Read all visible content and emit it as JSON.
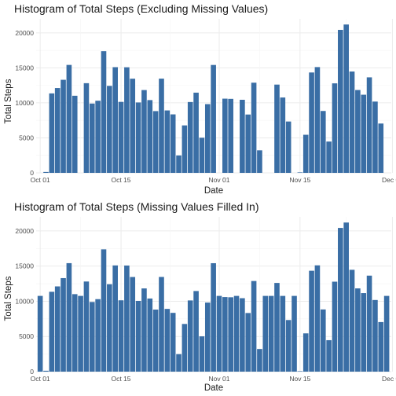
{
  "chart_data": [
    {
      "type": "bar",
      "title": "Histogram of Total Steps (Excluding Missing Values)",
      "xlabel": "Date",
      "ylabel": "Total Steps",
      "ylim": [
        0,
        22000
      ],
      "yticks": [
        0,
        5000,
        10000,
        15000,
        20000
      ],
      "xticks": [
        {
          "label": "Oct 01",
          "day": 1
        },
        {
          "label": "Oct 15",
          "day": 15
        },
        {
          "label": "Nov 01",
          "day": 32
        },
        {
          "label": "Nov 15",
          "day": 46
        },
        {
          "label": "Dec 01",
          "day": 62
        }
      ],
      "xlim": [
        0.3,
        61.8
      ],
      "bar_color": "#3a6ea5",
      "grid": true,
      "x": [
        "2012-10-01",
        "2012-10-02",
        "2012-10-03",
        "2012-10-04",
        "2012-10-05",
        "2012-10-06",
        "2012-10-07",
        "2012-10-08",
        "2012-10-09",
        "2012-10-10",
        "2012-10-11",
        "2012-10-12",
        "2012-10-13",
        "2012-10-14",
        "2012-10-15",
        "2012-10-16",
        "2012-10-17",
        "2012-10-18",
        "2012-10-19",
        "2012-10-20",
        "2012-10-21",
        "2012-10-22",
        "2012-10-23",
        "2012-10-24",
        "2012-10-25",
        "2012-10-26",
        "2012-10-27",
        "2012-10-28",
        "2012-10-29",
        "2012-10-30",
        "2012-10-31",
        "2012-11-01",
        "2012-11-02",
        "2012-11-03",
        "2012-11-04",
        "2012-11-05",
        "2012-11-06",
        "2012-11-07",
        "2012-11-08",
        "2012-11-09",
        "2012-11-10",
        "2012-11-11",
        "2012-11-12",
        "2012-11-13",
        "2012-11-14",
        "2012-11-15",
        "2012-11-16",
        "2012-11-17",
        "2012-11-18",
        "2012-11-19",
        "2012-11-20",
        "2012-11-21",
        "2012-11-22",
        "2012-11-23",
        "2012-11-24",
        "2012-11-25",
        "2012-11-26",
        "2012-11-27",
        "2012-11-28",
        "2012-11-29",
        "2012-11-30"
      ],
      "values": [
        null,
        126,
        11352,
        12116,
        13294,
        15420,
        11015,
        null,
        12811,
        9900,
        10304,
        17382,
        12426,
        15098,
        10139,
        15084,
        13452,
        10056,
        11829,
        10395,
        8821,
        13460,
        8918,
        8355,
        2492,
        6778,
        10119,
        11458,
        5018,
        9819,
        15414,
        null,
        10600,
        10571,
        null,
        10439,
        8334,
        12883,
        3219,
        null,
        null,
        12608,
        10765,
        7336,
        null,
        41,
        5441,
        14339,
        15110,
        8841,
        4472,
        12787,
        20427,
        21194,
        14478,
        11834,
        11162,
        13646,
        10183,
        7047,
        null
      ]
    },
    {
      "type": "bar",
      "title": "Histogram of Total Steps (Missing Values Filled In)",
      "xlabel": "Date",
      "ylabel": "Total Steps",
      "ylim": [
        0,
        22000
      ],
      "yticks": [
        0,
        5000,
        10000,
        15000,
        20000
      ],
      "xticks": [
        {
          "label": "Oct 01",
          "day": 1
        },
        {
          "label": "Oct 15",
          "day": 15
        },
        {
          "label": "Nov 01",
          "day": 32
        },
        {
          "label": "Nov 15",
          "day": 46
        },
        {
          "label": "Dec 01",
          "day": 62
        }
      ],
      "xlim": [
        0.3,
        61.8
      ],
      "bar_color": "#3a6ea5",
      "grid": true,
      "x": [
        "2012-10-01",
        "2012-10-02",
        "2012-10-03",
        "2012-10-04",
        "2012-10-05",
        "2012-10-06",
        "2012-10-07",
        "2012-10-08",
        "2012-10-09",
        "2012-10-10",
        "2012-10-11",
        "2012-10-12",
        "2012-10-13",
        "2012-10-14",
        "2012-10-15",
        "2012-10-16",
        "2012-10-17",
        "2012-10-18",
        "2012-10-19",
        "2012-10-20",
        "2012-10-21",
        "2012-10-22",
        "2012-10-23",
        "2012-10-24",
        "2012-10-25",
        "2012-10-26",
        "2012-10-27",
        "2012-10-28",
        "2012-10-29",
        "2012-10-30",
        "2012-10-31",
        "2012-11-01",
        "2012-11-02",
        "2012-11-03",
        "2012-11-04",
        "2012-11-05",
        "2012-11-06",
        "2012-11-07",
        "2012-11-08",
        "2012-11-09",
        "2012-11-10",
        "2012-11-11",
        "2012-11-12",
        "2012-11-13",
        "2012-11-14",
        "2012-11-15",
        "2012-11-16",
        "2012-11-17",
        "2012-11-18",
        "2012-11-19",
        "2012-11-20",
        "2012-11-21",
        "2012-11-22",
        "2012-11-23",
        "2012-11-24",
        "2012-11-25",
        "2012-11-26",
        "2012-11-27",
        "2012-11-28",
        "2012-11-29",
        "2012-11-30"
      ],
      "values": [
        10766,
        126,
        11352,
        12116,
        13294,
        15420,
        11015,
        10766,
        12811,
        9900,
        10304,
        17382,
        12426,
        15098,
        10139,
        15084,
        13452,
        10056,
        11829,
        10395,
        8821,
        13460,
        8918,
        8355,
        2492,
        6778,
        10119,
        11458,
        5018,
        9819,
        15414,
        10766,
        10600,
        10571,
        10766,
        10439,
        8334,
        12883,
        3219,
        10766,
        10766,
        12608,
        10765,
        7336,
        10766,
        41,
        5441,
        14339,
        15110,
        8841,
        4472,
        12787,
        20427,
        21194,
        14478,
        11834,
        11162,
        13646,
        10183,
        7047,
        10766
      ]
    }
  ]
}
